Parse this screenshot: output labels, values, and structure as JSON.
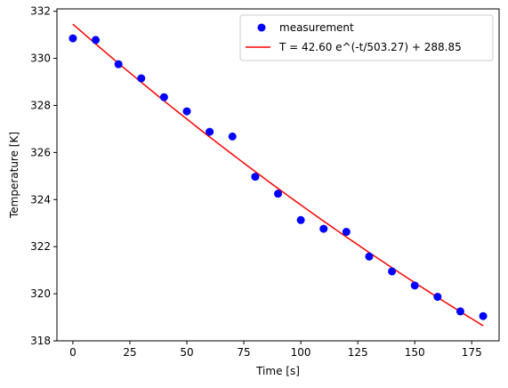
{
  "chart_data": {
    "type": "scatter",
    "xlabel": "Time [s]",
    "ylabel": "Temperature [K]",
    "xlim": [
      -7,
      187
    ],
    "ylim": [
      318,
      332.1
    ],
    "xticks": [
      0,
      25,
      50,
      75,
      100,
      125,
      150,
      175
    ],
    "yticks": [
      318,
      320,
      322,
      324,
      326,
      328,
      330,
      332
    ],
    "grid": false,
    "legend_position": "top-right",
    "series": [
      {
        "name": "measurement",
        "kind": "scatter",
        "color": "#0000ff",
        "x": [
          0,
          10,
          20,
          30,
          40,
          50,
          60,
          70,
          80,
          90,
          100,
          110,
          120,
          130,
          140,
          150,
          160,
          170,
          180
        ],
        "y": [
          330.85,
          330.78,
          329.75,
          329.15,
          328.35,
          327.75,
          326.88,
          326.68,
          324.97,
          324.25,
          323.13,
          322.76,
          322.63,
          321.58,
          320.95,
          320.35,
          319.87,
          319.25,
          319.05
        ]
      },
      {
        "name": "T = 42.60 e^(-t/503.27) + 288.85",
        "kind": "line",
        "color": "#ff0000",
        "model": {
          "amplitude": 42.6,
          "tau": 503.27,
          "offset": 288.85,
          "t_start": 0,
          "t_end": 180
        }
      }
    ]
  }
}
